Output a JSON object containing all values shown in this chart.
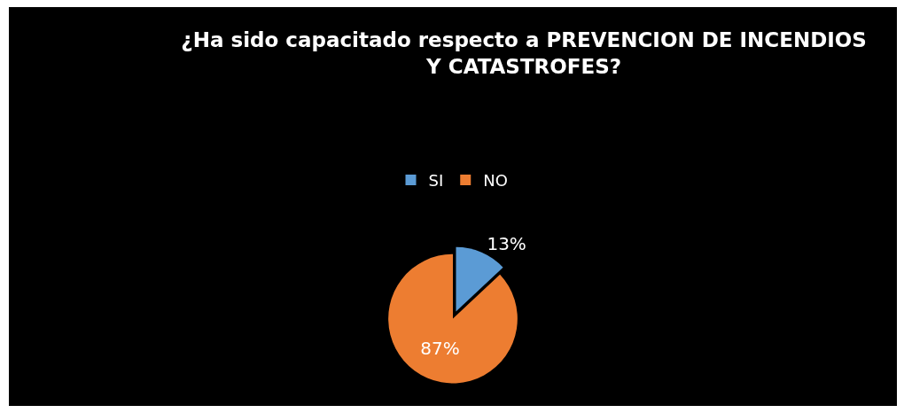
{
  "chart_data": {
    "type": "pie",
    "title": "¿Ha sido capacitado respecto a PREVENCION DE INCENDIOS\nY CATASTROFES?",
    "categories": [
      "SI",
      "NO"
    ],
    "values": [
      13,
      87
    ],
    "colors": [
      "#5b9bd5",
      "#ed7d31"
    ],
    "value_labels": [
      "13%",
      "87%"
    ],
    "legend": "top"
  }
}
